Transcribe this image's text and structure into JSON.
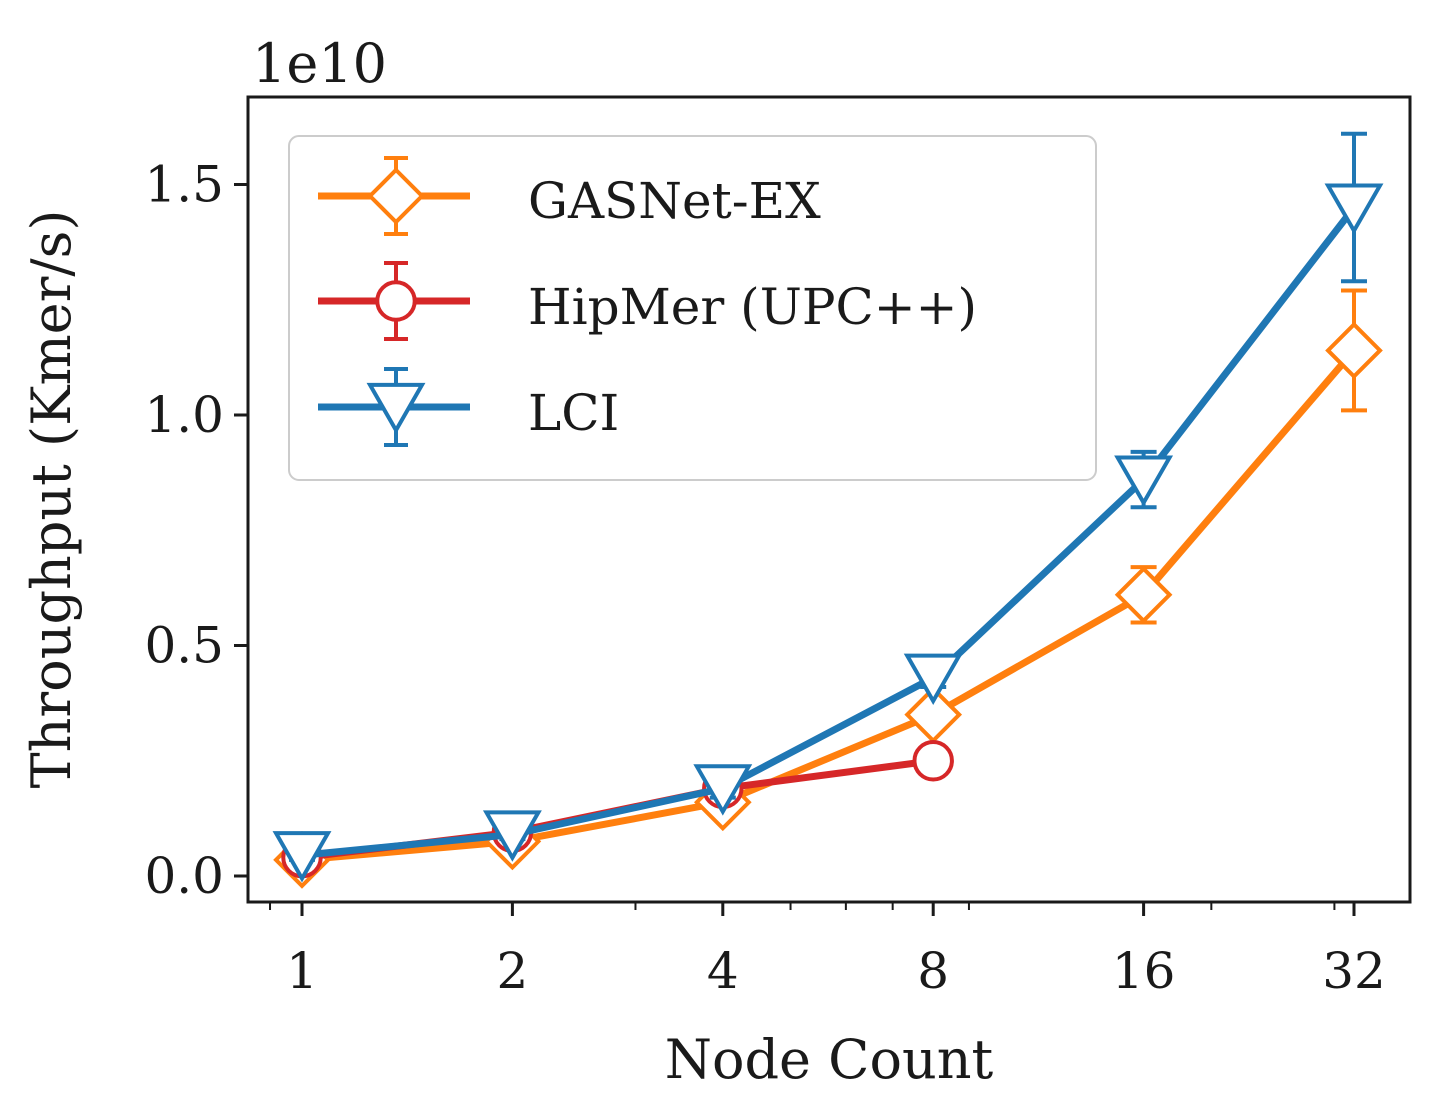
{
  "chart_data": {
    "type": "line",
    "title": "",
    "xlabel": "Node Count",
    "ylabel": "Throughput (Kmer/s)",
    "y_offset_label": "1e10",
    "x_scale": "log2",
    "x": [
      1,
      2,
      4,
      8,
      16,
      32
    ],
    "x_tick_labels": [
      "1",
      "2",
      "4",
      "8",
      "16",
      "32"
    ],
    "y_ticks": [
      0.0,
      0.5,
      1.0,
      1.5
    ],
    "y_tick_labels": [
      "0.0",
      "0.5",
      "1.0",
      "1.5"
    ],
    "ylim": [
      -0.05,
      1.7
    ],
    "legend_position": "top-left",
    "series": [
      {
        "name": "GASNet-EX",
        "color": "#ff7f0e",
        "marker": "diamond",
        "x": [
          1,
          2,
          4,
          8,
          16,
          32
        ],
        "values": [
          0.035,
          0.075,
          0.16,
          0.35,
          0.61,
          1.14
        ],
        "errors": [
          0.01,
          0.01,
          0.02,
          0.03,
          0.06,
          0.13
        ]
      },
      {
        "name": "HipMer (UPC++)",
        "color": "#d62728",
        "marker": "circle",
        "x": [
          1,
          2,
          4,
          8
        ],
        "values": [
          0.04,
          0.095,
          0.19,
          0.25
        ],
        "errors": [
          0.01,
          0.01,
          0.01,
          0.01
        ]
      },
      {
        "name": "LCI",
        "color": "#1f77b4",
        "marker": "triangle-down",
        "x": [
          1,
          2,
          4,
          8,
          16,
          32
        ],
        "values": [
          0.045,
          0.09,
          0.19,
          0.43,
          0.86,
          1.45
        ],
        "errors": [
          0.01,
          0.01,
          0.02,
          0.02,
          0.06,
          0.16
        ]
      }
    ]
  }
}
